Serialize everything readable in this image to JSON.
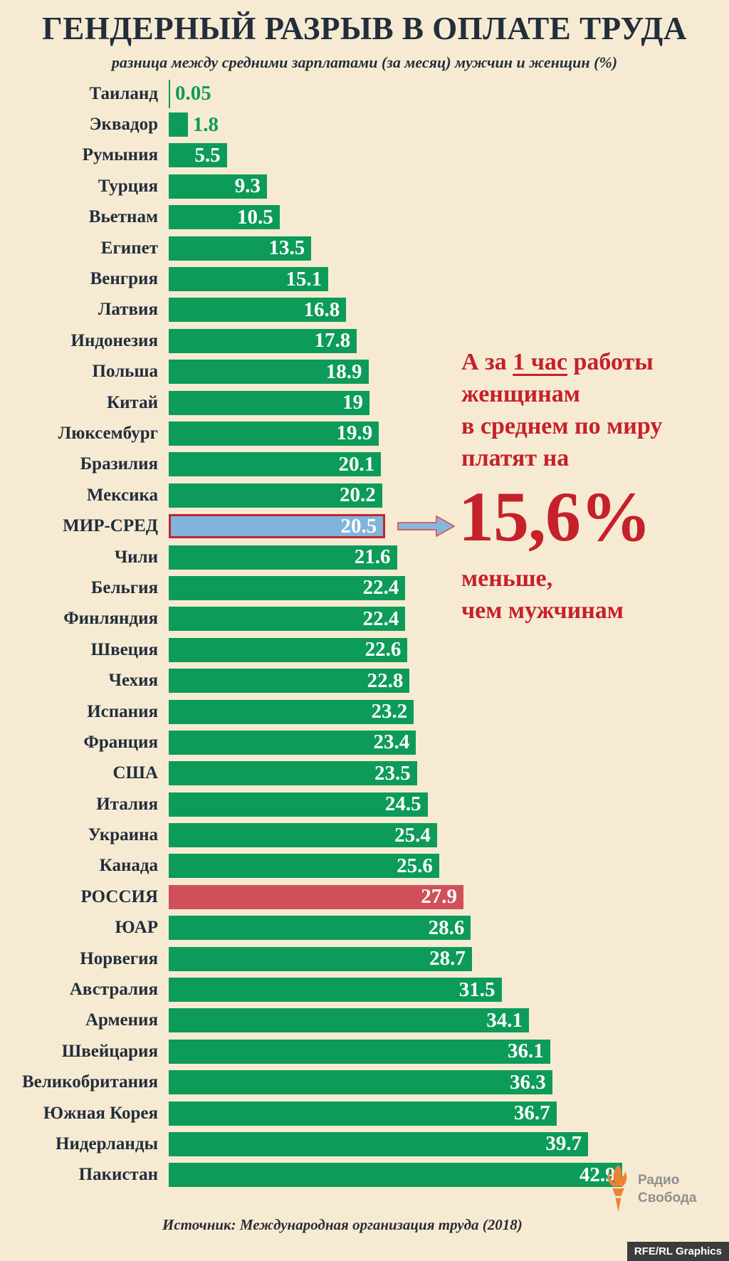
{
  "header": {
    "title": "ГЕНДЕРНЫЙ РАЗРЫВ В ОПЛАТЕ ТРУДА",
    "subtitle": "разница между средними зарплатами (за месяц) мужчин и женщин (%)"
  },
  "chart_data": {
    "type": "bar",
    "orientation": "horizontal",
    "title": "ГЕНДЕРНЫЙ РАЗРЫВ В ОПЛАТЕ ТРУДА",
    "subtitle": "разница между средними зарплатами (за месяц) мужчин и женщин (%)",
    "unit": "%",
    "xlim": [
      0,
      45
    ],
    "grid": false,
    "legend": "none",
    "value_labels": "on bars",
    "categories": [
      "Таиланд",
      "Эквадор",
      "Румыния",
      "Турция",
      "Вьетнам",
      "Египет",
      "Венгрия",
      "Латвия",
      "Индонезия",
      "Польша",
      "Китай",
      "Люксембург",
      "Бразилия",
      "Мексика",
      "МИР-СРЕД",
      "Чили",
      "Бельгия",
      "Финляндия",
      "Швеция",
      "Чехия",
      "Испания",
      "Франция",
      "США",
      "Италия",
      "Украина",
      "Канада",
      "РОССИЯ",
      "ЮАР",
      "Норвегия",
      "Австралия",
      "Армения",
      "Швейцария",
      "Великобритания",
      "Южная Корея",
      "Нидерланды",
      "Пакистан"
    ],
    "values": [
      0.05,
      1.8,
      5.5,
      9.3,
      10.5,
      13.5,
      15.1,
      16.8,
      17.8,
      18.9,
      19,
      19.9,
      20.1,
      20.2,
      20.5,
      21.6,
      22.4,
      22.4,
      22.6,
      22.8,
      23.2,
      23.4,
      23.5,
      24.5,
      25.4,
      25.6,
      27.9,
      28.6,
      28.7,
      31.5,
      34.1,
      36.1,
      36.3,
      36.7,
      39.7,
      42.9
    ],
    "bars": [
      {
        "label": "Таиланд",
        "value": 0.05,
        "display": "0.05",
        "style": "green",
        "value_outside": true
      },
      {
        "label": "Эквадор",
        "value": 1.8,
        "display": "1.8",
        "style": "green",
        "value_outside": true
      },
      {
        "label": "Румыния",
        "value": 5.5,
        "display": "5.5",
        "style": "green"
      },
      {
        "label": "Турция",
        "value": 9.3,
        "display": "9.3",
        "style": "green"
      },
      {
        "label": "Вьетнам",
        "value": 10.5,
        "display": "10.5",
        "style": "green"
      },
      {
        "label": "Египет",
        "value": 13.5,
        "display": "13.5",
        "style": "green"
      },
      {
        "label": "Венгрия",
        "value": 15.1,
        "display": "15.1",
        "style": "green"
      },
      {
        "label": "Латвия",
        "value": 16.8,
        "display": "16.8",
        "style": "green"
      },
      {
        "label": "Индонезия",
        "value": 17.8,
        "display": "17.8",
        "style": "green"
      },
      {
        "label": "Польша",
        "value": 18.9,
        "display": "18.9",
        "style": "green"
      },
      {
        "label": "Китай",
        "value": 19,
        "display": "19",
        "style": "green"
      },
      {
        "label": "Люксембург",
        "value": 19.9,
        "display": "19.9",
        "style": "green"
      },
      {
        "label": "Бразилия",
        "value": 20.1,
        "display": "20.1",
        "style": "green"
      },
      {
        "label": "Мексика",
        "value": 20.2,
        "display": "20.2",
        "style": "green"
      },
      {
        "label": "МИР-СРЕД",
        "value": 20.5,
        "display": "20.5",
        "style": "world",
        "highlight": "world-average"
      },
      {
        "label": "Чили",
        "value": 21.6,
        "display": "21.6",
        "style": "green"
      },
      {
        "label": "Бельгия",
        "value": 22.4,
        "display": "22.4",
        "style": "green"
      },
      {
        "label": "Финляндия",
        "value": 22.4,
        "display": "22.4",
        "style": "green"
      },
      {
        "label": "Швеция",
        "value": 22.6,
        "display": "22.6",
        "style": "green"
      },
      {
        "label": "Чехия",
        "value": 22.8,
        "display": "22.8",
        "style": "green"
      },
      {
        "label": "Испания",
        "value": 23.2,
        "display": "23.2",
        "style": "green"
      },
      {
        "label": "Франция",
        "value": 23.4,
        "display": "23.4",
        "style": "green"
      },
      {
        "label": "США",
        "value": 23.5,
        "display": "23.5",
        "style": "green"
      },
      {
        "label": "Италия",
        "value": 24.5,
        "display": "24.5",
        "style": "green"
      },
      {
        "label": "Украина",
        "value": 25.4,
        "display": "25.4",
        "style": "green"
      },
      {
        "label": "Канада",
        "value": 25.6,
        "display": "25.6",
        "style": "green"
      },
      {
        "label": "РОССИЯ",
        "value": 27.9,
        "display": "27.9",
        "style": "russia",
        "highlight": "russia"
      },
      {
        "label": "ЮАР",
        "value": 28.6,
        "display": "28.6",
        "style": "green"
      },
      {
        "label": "Норвегия",
        "value": 28.7,
        "display": "28.7",
        "style": "green"
      },
      {
        "label": "Австралия",
        "value": 31.5,
        "display": "31.5",
        "style": "green"
      },
      {
        "label": "Армения",
        "value": 34.1,
        "display": "34.1",
        "style": "green"
      },
      {
        "label": "Швейцария",
        "value": 36.1,
        "display": "36.1",
        "style": "green"
      },
      {
        "label": "Великобритания",
        "value": 36.3,
        "display": "36.3",
        "style": "green"
      },
      {
        "label": "Южная Корея",
        "value": 36.7,
        "display": "36.7",
        "style": "green"
      },
      {
        "label": "Нидерланды",
        "value": 39.7,
        "display": "39.7",
        "style": "green"
      },
      {
        "label": "Пакистан",
        "value": 42.9,
        "display": "42.9",
        "style": "green"
      }
    ]
  },
  "annotation": {
    "line1_prefix": "А за ",
    "line1_underline": "1 час",
    "line1_suffix": " работы",
    "line2": "женщинам",
    "line3": "в среднем по миру",
    "line4": "платят на",
    "big_number": "15,6%",
    "line5": "меньше,",
    "line6": "чем мужчинам"
  },
  "footer": {
    "source": "Источник: Международная организация труда (2018)",
    "logo_line1": "Радио",
    "logo_line2": "Свобода",
    "credit": "RFE/RL Graphics"
  },
  "icons": {
    "arrow": "world-average-arrow-icon",
    "logo": "radio-svoboda-torch-icon"
  },
  "colors": {
    "background": "#f6ebd2",
    "bar_green": "#0d9b59",
    "bar_world_fill": "#81b4dd",
    "bar_world_border": "#c2252c",
    "bar_russia": "#d0505a",
    "value_text": "#ffffff",
    "label_navy": "#232e3c",
    "accent_red": "#c5212b",
    "logo_orange": "#ee8134",
    "logo_gray": "#8f8f8f",
    "badge_bg": "#3c3c3c"
  }
}
